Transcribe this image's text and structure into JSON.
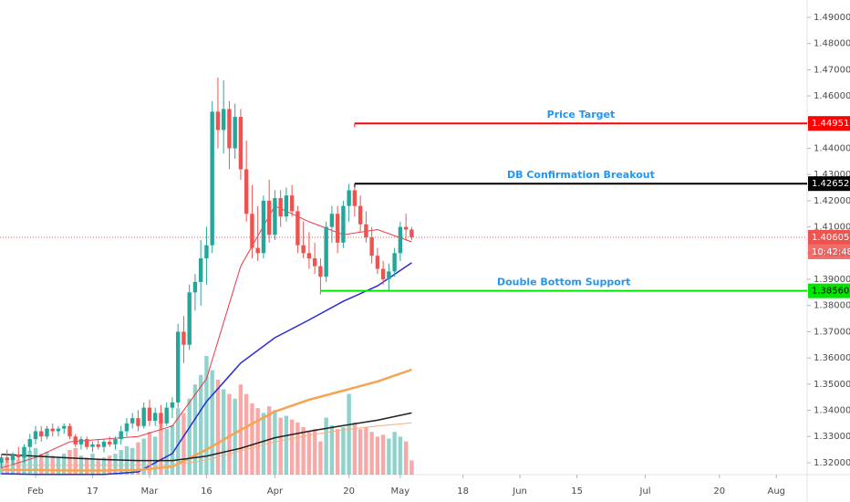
{
  "chart_data": {
    "type": "candlestick",
    "xlim": [
      -0.24,
      141.4
    ],
    "xticks": [
      {
        "value": 6,
        "label": "Feb"
      },
      {
        "value": 16,
        "label": "17"
      },
      {
        "value": 26,
        "label": "Mar"
      },
      {
        "value": 36,
        "label": "16"
      },
      {
        "value": 48,
        "label": "Apr"
      },
      {
        "value": 61,
        "label": "20"
      },
      {
        "value": 70,
        "label": "May"
      },
      {
        "value": 81,
        "label": "18"
      },
      {
        "value": 91,
        "label": "Jun"
      },
      {
        "value": 101,
        "label": "15"
      },
      {
        "value": 113,
        "label": "Jul"
      },
      {
        "value": 126,
        "label": "20"
      },
      {
        "value": 136,
        "label": "Aug"
      }
    ],
    "ylim": [
      1.31544,
      1.49662
    ],
    "yticks": [
      {
        "value": 1.32,
        "label": "1.32000"
      },
      {
        "value": 1.33,
        "label": "1.33000"
      },
      {
        "value": 1.34,
        "label": "1.34000"
      },
      {
        "value": 1.35,
        "label": "1.35000"
      },
      {
        "value": 1.36,
        "label": "1.36000"
      },
      {
        "value": 1.37,
        "label": "1.37000"
      },
      {
        "value": 1.38,
        "label": "1.38000"
      },
      {
        "value": 1.39,
        "label": "1.39000"
      },
      {
        "value": 1.4,
        "label": "1.40000"
      },
      {
        "value": 1.41,
        "label": "1.41000"
      },
      {
        "value": 1.42,
        "label": "1.42000"
      },
      {
        "value": 1.43,
        "label": "1.43000"
      },
      {
        "value": 1.44,
        "label": "1.44000"
      },
      {
        "value": 1.45,
        "label": "1.45000"
      },
      {
        "value": 1.46,
        "label": "1.46000"
      },
      {
        "value": 1.47,
        "label": "1.47000"
      },
      {
        "value": 1.48,
        "label": "1.48000"
      },
      {
        "value": 1.49,
        "label": "1.49000"
      }
    ],
    "up_color": "#26a69a",
    "down_color": "#ef5350",
    "open": [
      1.32,
      1.322,
      1.321,
      1.323,
      1.322,
      1.326,
      1.329,
      1.332,
      1.33,
      1.333,
      1.332,
      1.333,
      1.334,
      1.33,
      1.327,
      1.329,
      1.326,
      1.327,
      1.326,
      1.328,
      1.327,
      1.329,
      1.332,
      1.335,
      1.337,
      1.334,
      1.341,
      1.336,
      1.339,
      1.335,
      1.341,
      1.343,
      1.37,
      1.365,
      1.385,
      1.389,
      1.398,
      1.403,
      1.454,
      1.447,
      1.455,
      1.44,
      1.452,
      1.432,
      1.415,
      1.402,
      1.4,
      1.42,
      1.407,
      1.421,
      1.414,
      1.422,
      1.416,
      1.403,
      1.4,
      1.398,
      1.395,
      1.391,
      1.41,
      1.415,
      1.404,
      1.418,
      1.424,
      1.418,
      1.411,
      1.406,
      1.399,
      1.394,
      1.39,
      1.393,
      1.4,
      1.41,
      1.409
    ],
    "high": [
      1.323,
      1.325,
      1.324,
      1.326,
      1.327,
      1.331,
      1.334,
      1.334,
      1.334,
      1.335,
      1.334,
      1.335,
      1.335,
      1.331,
      1.33,
      1.33,
      1.328,
      1.329,
      1.329,
      1.33,
      1.33,
      1.334,
      1.337,
      1.339,
      1.34,
      1.343,
      1.344,
      1.341,
      1.342,
      1.343,
      1.345,
      1.373,
      1.376,
      1.388,
      1.392,
      1.405,
      1.41,
      1.458,
      1.467,
      1.466,
      1.458,
      1.457,
      1.455,
      1.443,
      1.426,
      1.418,
      1.422,
      1.428,
      1.424,
      1.424,
      1.425,
      1.426,
      1.418,
      1.412,
      1.408,
      1.404,
      1.398,
      1.412,
      1.418,
      1.418,
      1.42,
      1.4265,
      1.426,
      1.422,
      1.416,
      1.41,
      1.402,
      1.397,
      1.396,
      1.402,
      1.412,
      1.415,
      1.41
    ],
    "low": [
      1.318,
      1.32,
      1.319,
      1.321,
      1.32,
      1.324,
      1.327,
      1.328,
      1.329,
      1.33,
      1.33,
      1.331,
      1.329,
      1.326,
      1.325,
      1.325,
      1.324,
      1.325,
      1.324,
      1.326,
      1.325,
      1.327,
      1.33,
      1.333,
      1.332,
      1.333,
      1.334,
      1.334,
      1.333,
      1.334,
      1.337,
      1.341,
      1.358,
      1.363,
      1.378,
      1.38,
      1.388,
      1.4,
      1.44,
      1.438,
      1.432,
      1.436,
      1.428,
      1.412,
      1.398,
      1.397,
      1.398,
      1.404,
      1.405,
      1.41,
      1.412,
      1.414,
      1.4,
      1.398,
      1.394,
      1.392,
      1.3856,
      1.389,
      1.404,
      1.4,
      1.402,
      1.412,
      1.414,
      1.408,
      1.404,
      1.396,
      1.392,
      1.388,
      1.3856,
      1.391,
      1.397,
      1.405,
      1.405
    ],
    "close": [
      1.322,
      1.321,
      1.323,
      1.322,
      1.326,
      1.329,
      1.332,
      1.33,
      1.333,
      1.332,
      1.333,
      1.334,
      1.33,
      1.327,
      1.329,
      1.326,
      1.327,
      1.326,
      1.328,
      1.327,
      1.329,
      1.332,
      1.335,
      1.337,
      1.334,
      1.341,
      1.336,
      1.339,
      1.335,
      1.341,
      1.343,
      1.37,
      1.365,
      1.385,
      1.389,
      1.398,
      1.403,
      1.454,
      1.447,
      1.455,
      1.44,
      1.452,
      1.432,
      1.415,
      1.402,
      1.4,
      1.42,
      1.407,
      1.421,
      1.414,
      1.422,
      1.416,
      1.403,
      1.4,
      1.398,
      1.395,
      1.391,
      1.41,
      1.415,
      1.404,
      1.418,
      1.424,
      1.418,
      1.411,
      1.406,
      1.399,
      1.394,
      1.39,
      1.393,
      1.4,
      1.41,
      1.409,
      1.40605
    ],
    "volume": [
      14,
      18,
      22,
      16,
      20,
      25,
      28,
      22,
      24,
      20,
      18,
      22,
      26,
      28,
      20,
      18,
      22,
      16,
      18,
      20,
      22,
      26,
      30,
      28,
      34,
      38,
      45,
      40,
      55,
      48,
      52,
      70,
      65,
      80,
      95,
      105,
      125,
      110,
      100,
      90,
      85,
      80,
      95,
      85,
      75,
      70,
      65,
      72,
      68,
      60,
      62,
      58,
      55,
      50,
      45,
      48,
      35,
      60,
      52,
      48,
      50,
      85,
      55,
      48,
      50,
      45,
      40,
      42,
      38,
      45,
      40,
      35,
      15
    ],
    "moving_averages": [
      {
        "color": "#f23645",
        "width": 1,
        "x": [
          0,
          6,
          12,
          18,
          24,
          30,
          36,
          42,
          48,
          54,
          60,
          66,
          72
        ],
        "values": [
          1.318,
          1.322,
          1.328,
          1.329,
          1.33,
          1.334,
          1.352,
          1.395,
          1.418,
          1.412,
          1.407,
          1.409,
          1.4043
        ]
      },
      {
        "color": "#2b2bd6",
        "width": 1.5,
        "x": [
          0,
          6,
          12,
          18,
          24,
          30,
          36,
          42,
          48,
          54,
          60,
          66,
          72
        ],
        "values": [
          1.3158,
          1.3155,
          1.3155,
          1.3155,
          1.3165,
          1.3235,
          1.3433,
          1.358,
          1.3677,
          1.3745,
          1.3816,
          1.3875,
          1.3963
        ]
      },
      {
        "color": "#f7a350",
        "width": 2.5,
        "x": [
          0,
          6,
          12,
          18,
          24,
          30,
          36,
          42,
          48,
          54,
          60,
          66,
          72
        ],
        "values": [
          1.3172,
          1.3172,
          1.317,
          1.317,
          1.3172,
          1.3185,
          1.325,
          1.3325,
          1.3395,
          1.344,
          1.3475,
          1.351,
          1.3555
        ]
      },
      {
        "color": "#222222",
        "width": 1.5,
        "x": [
          0,
          6,
          12,
          18,
          24,
          30,
          36,
          42,
          48,
          54,
          60,
          66,
          72
        ],
        "values": [
          1.3232,
          1.3225,
          1.3218,
          1.3212,
          1.3208,
          1.3208,
          1.3225,
          1.3255,
          1.3295,
          1.332,
          1.3342,
          1.3362,
          1.339
        ]
      },
      {
        "color": "#f5b07a",
        "width": 1,
        "x": [
          0,
          12,
          24,
          30,
          36,
          42,
          48,
          54,
          60,
          66,
          72
        ],
        "values": [
          1.319,
          1.319,
          1.319,
          1.319,
          1.321,
          1.3245,
          1.328,
          1.3305,
          1.3325,
          1.334,
          1.3352
        ]
      }
    ],
    "levels": [
      {
        "label": "Price Target",
        "value": 1.44951,
        "value_label": "1.44951",
        "start": 62,
        "color": "#ff0000",
        "text_color": "#ffffff"
      },
      {
        "label": "DB Confirmation Breakout",
        "value": 1.42652,
        "value_label": "1.42652",
        "start": 62,
        "color": "#000000",
        "text_color": "#ffffff"
      },
      {
        "label": "Double Bottom Support",
        "value": 1.3856,
        "value_label": "1.38560",
        "start": 56,
        "color": "#00e600",
        "text_color": "#000000"
      }
    ],
    "last_price": 1.40605,
    "last_price_color": "#ef5350",
    "countdown": "10:42:48"
  }
}
